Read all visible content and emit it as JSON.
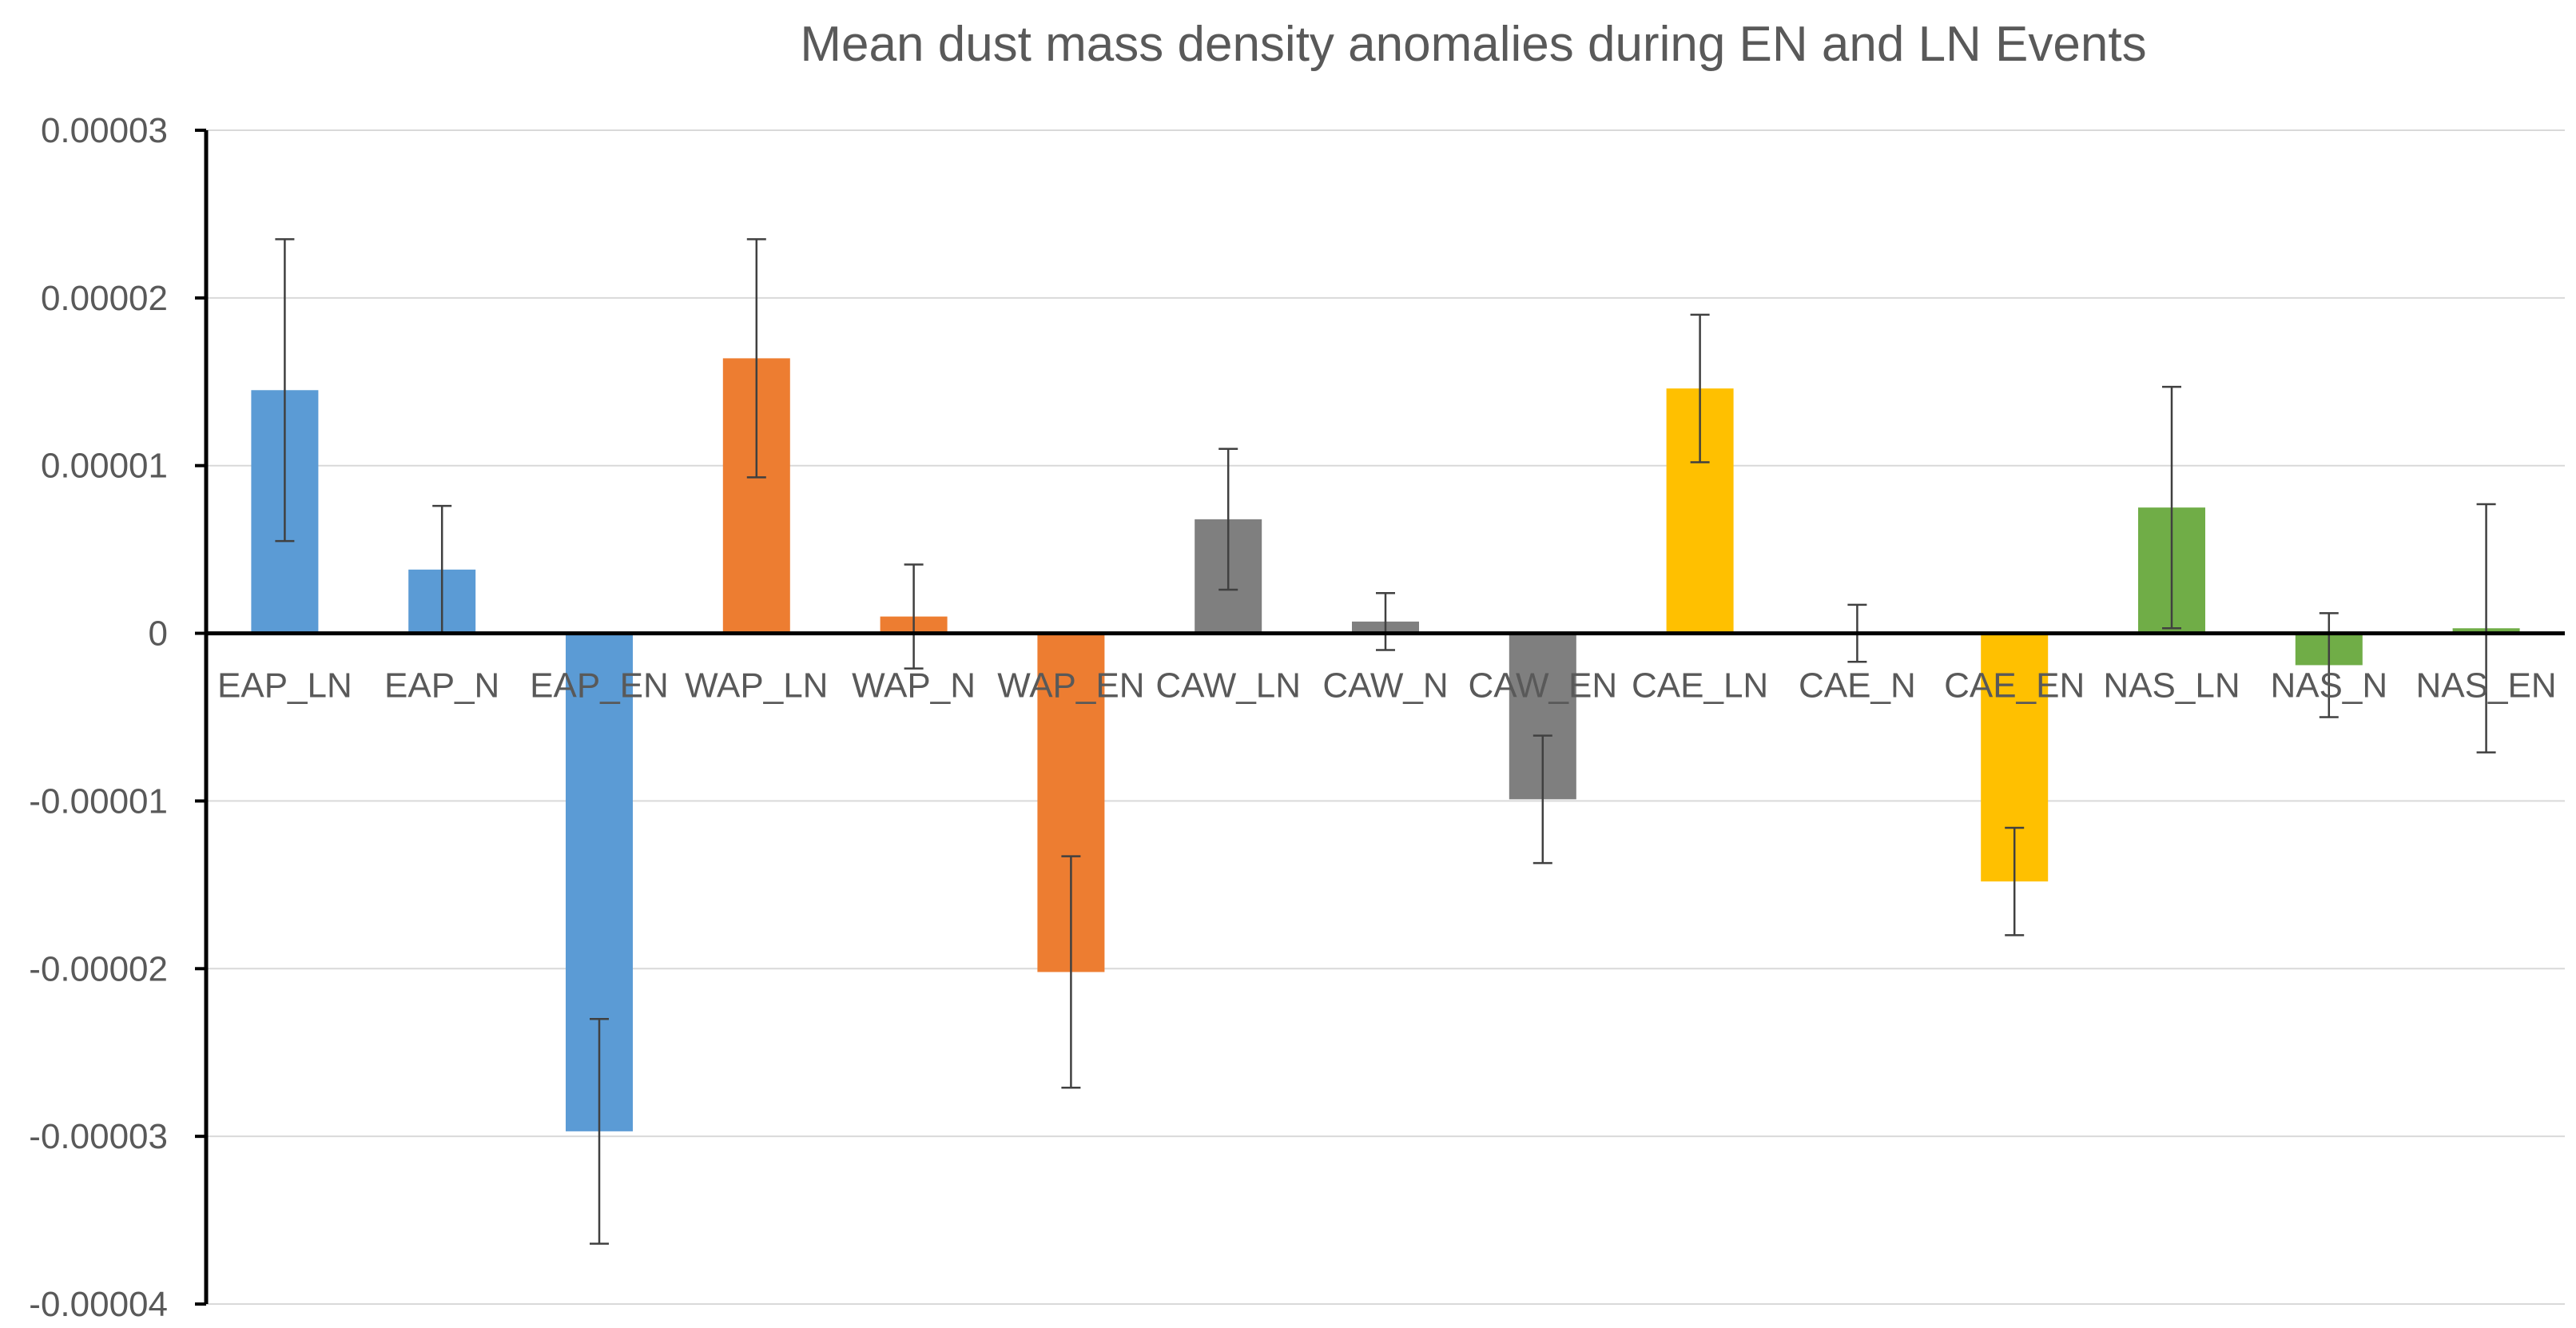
{
  "chart_data": {
    "type": "bar",
    "title": "Mean dust mass density anomalies during EN and LN Events",
    "xlabel": "",
    "ylabel": "",
    "ylim": [
      -4e-05,
      3e-05
    ],
    "yticks": [
      3e-05,
      2e-05,
      1e-05,
      0,
      -1e-05,
      -2e-05,
      -3e-05,
      -4e-05
    ],
    "ytick_labels": [
      "0.00003",
      "0.00002",
      "0.00001",
      "0",
      "-0.00001",
      "-0.00002",
      "-0.00003",
      "-0.00004"
    ],
    "grid": true,
    "legend": "none",
    "categories": [
      "EAP_LN",
      "EAP_N",
      "EAP_EN",
      "WAP_LN",
      "WAP_N",
      "WAP_EN",
      "CAW_LN",
      "CAW_N",
      "CAW_EN",
      "CAE_LN",
      "CAE_N",
      "CAE_EN",
      "NAS_LN",
      "NAS_N",
      "NAS_EN"
    ],
    "values": [
      1.45e-05,
      3.8e-06,
      -2.97e-05,
      1.64e-05,
      1e-06,
      -2.02e-05,
      6.8e-06,
      7e-07,
      -9.9e-06,
      1.46e-05,
      0.0,
      -1.48e-05,
      7.5e-06,
      -1.9e-06,
      3e-07
    ],
    "error": [
      9e-06,
      3.8e-06,
      6.7e-06,
      7.1e-06,
      3.1e-06,
      6.9e-06,
      4.2e-06,
      1.7e-06,
      3.8e-06,
      4.4e-06,
      1.7e-06,
      3.2e-06,
      7.2e-06,
      3.1e-06,
      7.4e-06
    ],
    "colors": [
      "#5B9BD5",
      "#5B9BD5",
      "#5B9BD5",
      "#ED7D31",
      "#ED7D31",
      "#ED7D31",
      "#7F7F7F",
      "#7F7F7F",
      "#7F7F7F",
      "#FFC000",
      "#FFC000",
      "#FFC000",
      "#70AD47",
      "#70AD47",
      "#70AD47"
    ]
  }
}
